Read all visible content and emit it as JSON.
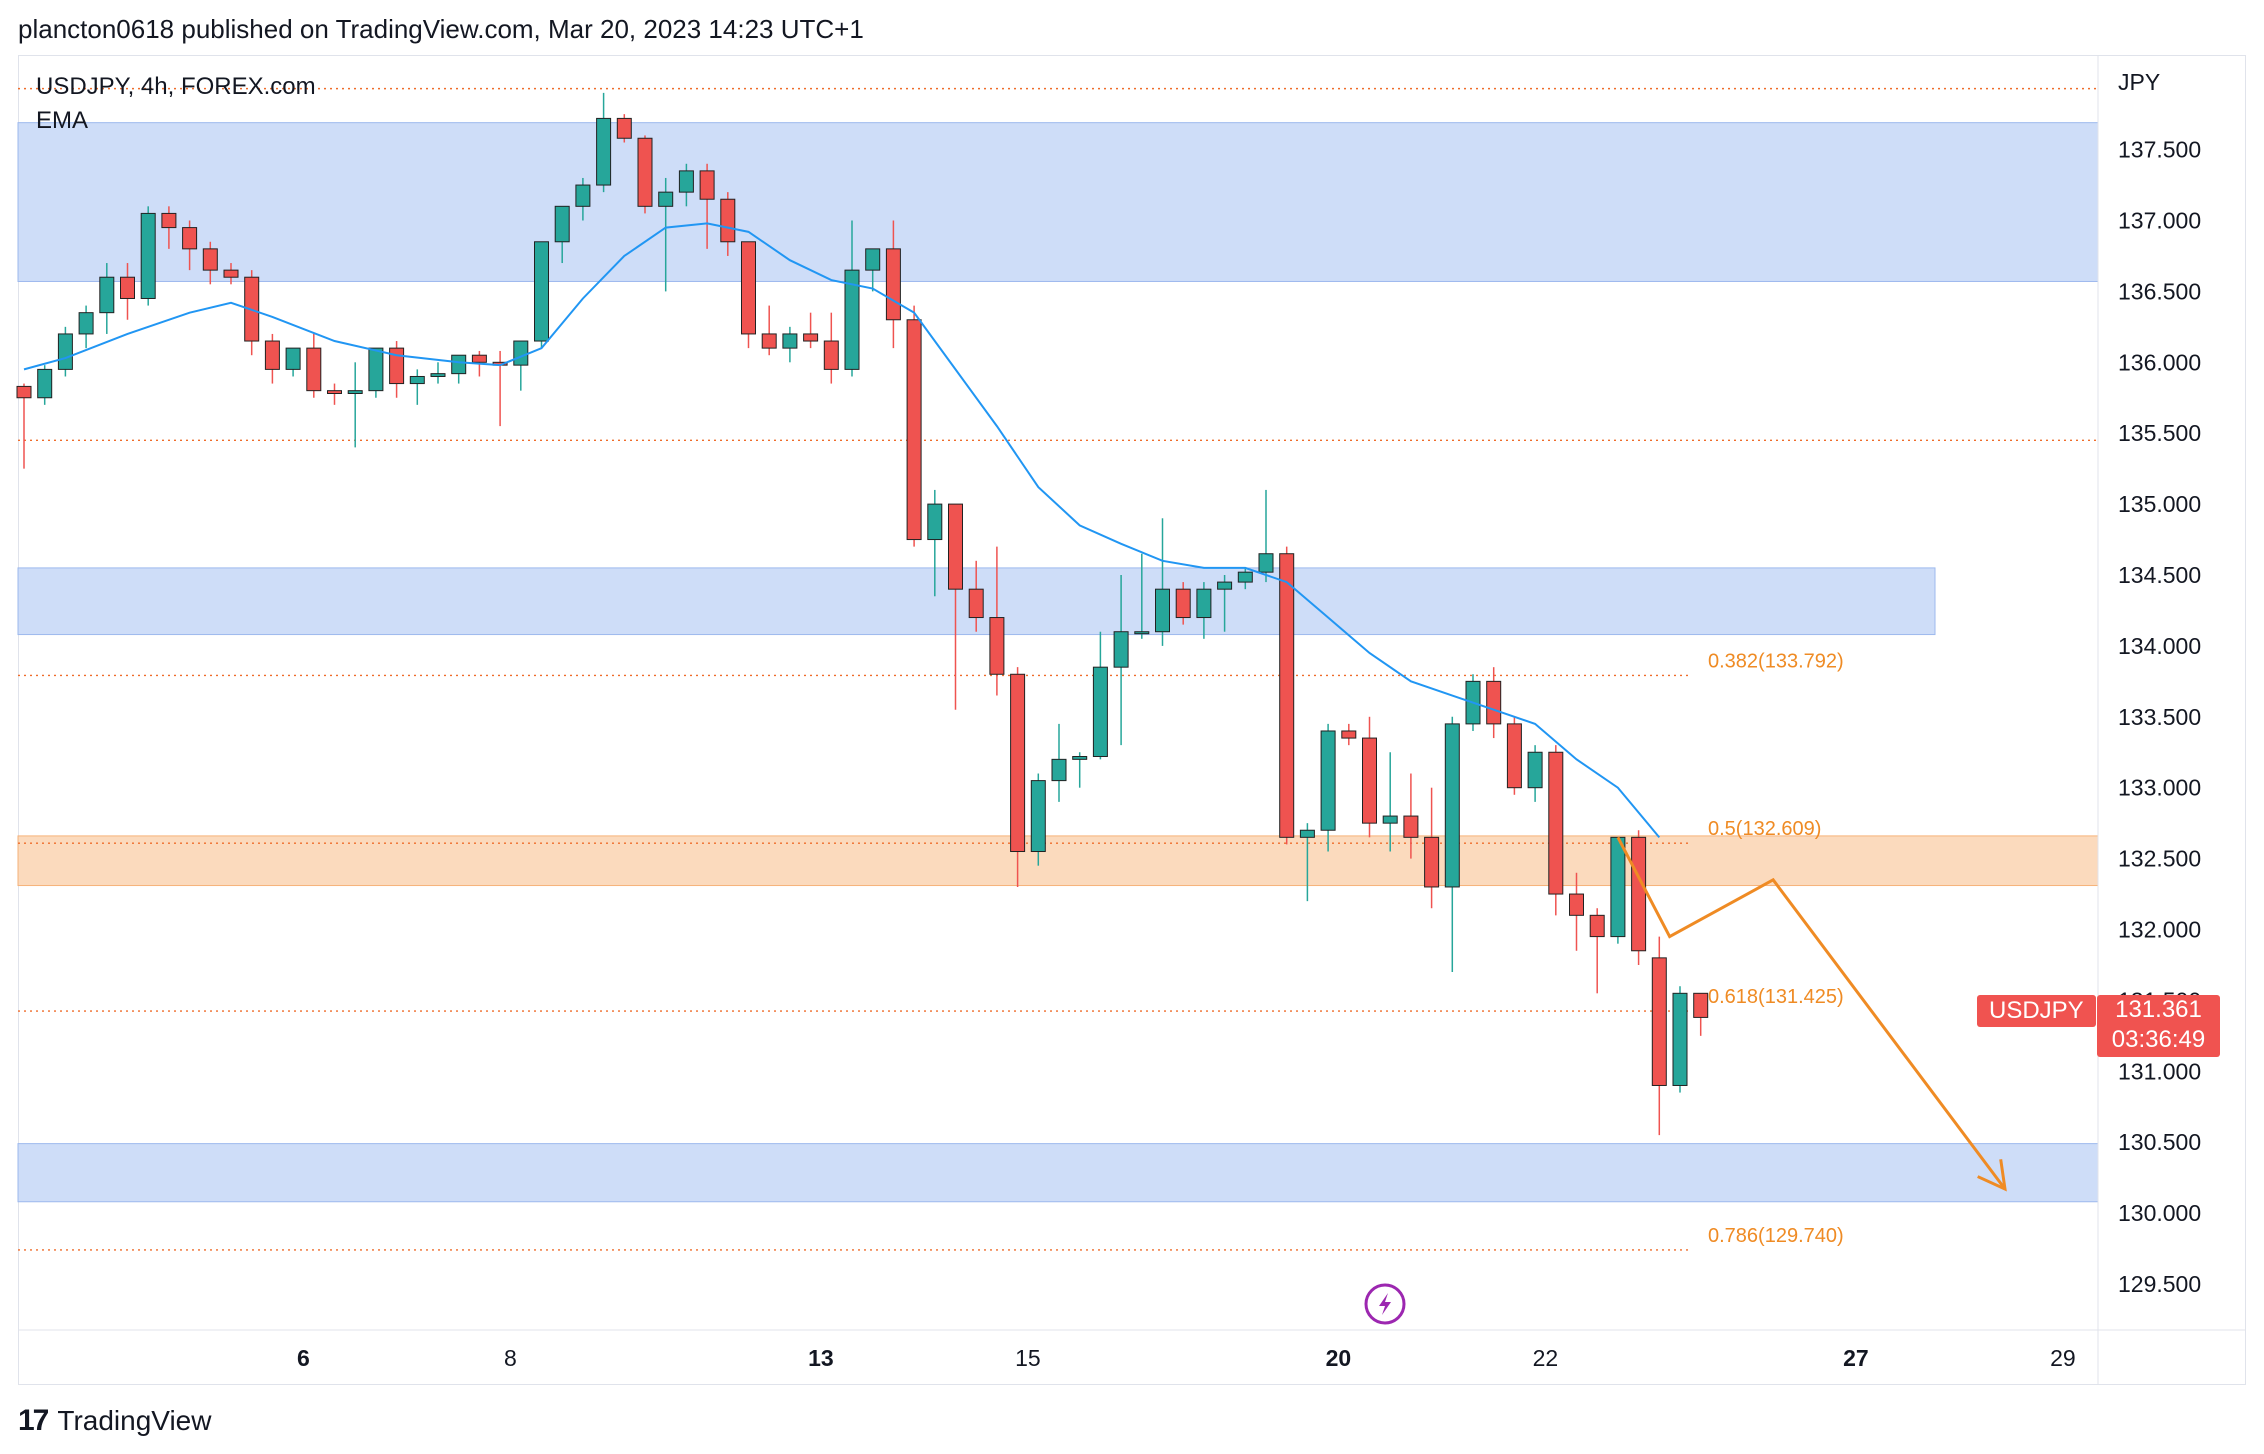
{
  "header": {
    "published_by": "plancton0618 published on TradingView.com, Mar 20, 2023 14:23 UTC+1"
  },
  "legend": {
    "symbol_line": "USDJPY, 4h, FOREX.com",
    "indicator": "EMA"
  },
  "brand": {
    "name": "TradingView"
  },
  "price_label": {
    "symbol": "USDJPY",
    "price": "131.361",
    "countdown": "03:36:49"
  },
  "colors": {
    "up": "#26a69a",
    "down": "#ef5350",
    "ema": "#2196f3",
    "zone_blue": "#c9d9f7",
    "zone_orange": "#fbd6b6",
    "fib": "#ef8b24",
    "price_tag": "#f05350"
  },
  "chart_data": {
    "type": "candlestick",
    "symbol": "USDJPY",
    "timeframe": "4h",
    "currency_label": "JPY",
    "y_range": [
      129.1,
      138.0
    ],
    "y_ticks": [
      "137.500",
      "137.000",
      "136.500",
      "136.000",
      "135.500",
      "135.000",
      "134.500",
      "134.000",
      "133.500",
      "133.000",
      "132.500",
      "132.000",
      "131.500",
      "131.000",
      "130.500",
      "130.000",
      "129.500"
    ],
    "x_ticks": [
      {
        "label": "6",
        "index": 13.5,
        "bold": true
      },
      {
        "label": "8",
        "index": 23.5,
        "bold": false
      },
      {
        "label": "13",
        "index": 38.5,
        "bold": true
      },
      {
        "label": "15",
        "index": 48.5,
        "bold": false
      },
      {
        "label": "20",
        "index": 63.5,
        "bold": true
      },
      {
        "label": "22",
        "index": 73.5,
        "bold": false
      },
      {
        "label": "27",
        "index": 88.5,
        "bold": true
      },
      {
        "label": "29",
        "index": 98.5,
        "bold": false
      }
    ],
    "candles": [
      [
        135.83,
        135.85,
        135.25,
        135.75
      ],
      [
        135.75,
        135.98,
        135.7,
        135.95
      ],
      [
        135.95,
        136.25,
        135.9,
        136.2
      ],
      [
        136.2,
        136.4,
        136.1,
        136.35
      ],
      [
        136.35,
        136.7,
        136.2,
        136.6
      ],
      [
        136.6,
        136.7,
        136.3,
        136.45
      ],
      [
        136.45,
        137.1,
        136.4,
        137.05
      ],
      [
        137.05,
        137.1,
        136.8,
        136.95
      ],
      [
        136.95,
        137.0,
        136.65,
        136.8
      ],
      [
        136.8,
        136.85,
        136.55,
        136.65
      ],
      [
        136.65,
        136.7,
        136.55,
        136.6
      ],
      [
        136.6,
        136.65,
        136.05,
        136.15
      ],
      [
        136.15,
        136.2,
        135.85,
        135.95
      ],
      [
        135.95,
        136.1,
        135.9,
        136.1
      ],
      [
        136.1,
        136.2,
        135.75,
        135.8
      ],
      [
        135.8,
        135.85,
        135.7,
        135.78
      ],
      [
        135.78,
        136.0,
        135.4,
        135.8
      ],
      [
        135.8,
        136.1,
        135.75,
        136.1
      ],
      [
        136.1,
        136.15,
        135.75,
        135.85
      ],
      [
        135.85,
        135.95,
        135.7,
        135.9
      ],
      [
        135.9,
        136.0,
        135.85,
        135.92
      ],
      [
        135.92,
        136.05,
        135.85,
        136.05
      ],
      [
        136.05,
        136.08,
        135.9,
        136.0
      ],
      [
        136.0,
        136.08,
        135.55,
        135.98
      ],
      [
        135.98,
        136.15,
        135.8,
        136.15
      ],
      [
        136.15,
        136.85,
        136.1,
        136.85
      ],
      [
        136.85,
        137.1,
        136.7,
        137.1
      ],
      [
        137.1,
        137.3,
        137.0,
        137.25
      ],
      [
        137.25,
        137.9,
        137.2,
        137.72
      ],
      [
        137.72,
        137.75,
        137.55,
        137.58
      ],
      [
        137.58,
        137.6,
        137.05,
        137.1
      ],
      [
        137.1,
        137.3,
        136.5,
        137.2
      ],
      [
        137.2,
        137.4,
        137.1,
        137.35
      ],
      [
        137.35,
        137.4,
        136.8,
        137.15
      ],
      [
        137.15,
        137.2,
        136.75,
        136.85
      ],
      [
        136.85,
        136.85,
        136.1,
        136.2
      ],
      [
        136.2,
        136.4,
        136.05,
        136.1
      ],
      [
        136.1,
        136.25,
        136.0,
        136.2
      ],
      [
        136.2,
        136.35,
        136.1,
        136.15
      ],
      [
        136.15,
        136.35,
        135.85,
        135.95
      ],
      [
        135.95,
        137.0,
        135.9,
        136.65
      ],
      [
        136.65,
        136.8,
        136.5,
        136.8
      ],
      [
        136.8,
        137.0,
        136.1,
        136.3
      ],
      [
        136.3,
        136.4,
        134.7,
        134.75
      ],
      [
        134.75,
        135.1,
        134.35,
        135.0
      ],
      [
        135.0,
        135.0,
        133.55,
        134.4
      ],
      [
        134.4,
        134.6,
        134.1,
        134.2
      ],
      [
        134.2,
        134.7,
        133.65,
        133.8
      ],
      [
        133.8,
        133.85,
        132.3,
        132.55
      ],
      [
        132.55,
        133.1,
        132.45,
        133.05
      ],
      [
        133.05,
        133.45,
        132.9,
        133.2
      ],
      [
        133.2,
        133.25,
        133.0,
        133.22
      ],
      [
        133.22,
        134.1,
        133.2,
        133.85
      ],
      [
        133.85,
        134.5,
        133.3,
        134.1
      ],
      [
        134.1,
        134.65,
        134.05,
        134.1
      ],
      [
        134.1,
        134.9,
        134.0,
        134.4
      ],
      [
        134.4,
        134.45,
        134.15,
        134.2
      ],
      [
        134.2,
        134.45,
        134.05,
        134.4
      ],
      [
        134.4,
        134.5,
        134.1,
        134.45
      ],
      [
        134.45,
        134.55,
        134.4,
        134.52
      ],
      [
        134.52,
        135.1,
        134.45,
        134.65
      ],
      [
        134.65,
        134.7,
        132.6,
        132.65
      ],
      [
        132.65,
        132.75,
        132.2,
        132.7
      ],
      [
        132.7,
        133.45,
        132.55,
        133.4
      ],
      [
        133.4,
        133.45,
        133.3,
        133.35
      ],
      [
        133.35,
        133.5,
        132.65,
        132.75
      ],
      [
        132.75,
        133.25,
        132.55,
        132.8
      ],
      [
        132.8,
        133.1,
        132.5,
        132.65
      ],
      [
        132.65,
        133.0,
        132.15,
        132.3
      ],
      [
        132.3,
        133.5,
        131.7,
        133.45
      ],
      [
        133.45,
        133.8,
        133.4,
        133.75
      ],
      [
        133.75,
        133.85,
        133.35,
        133.45
      ],
      [
        133.45,
        133.5,
        132.95,
        133.0
      ],
      [
        133.0,
        133.3,
        132.9,
        133.25
      ],
      [
        133.25,
        133.3,
        132.1,
        132.25
      ],
      [
        132.25,
        132.4,
        131.85,
        132.1
      ],
      [
        132.1,
        132.15,
        131.55,
        131.95
      ],
      [
        131.95,
        132.65,
        131.9,
        132.65
      ],
      [
        132.65,
        132.7,
        131.75,
        131.85
      ],
      [
        131.8,
        131.95,
        130.55,
        130.9
      ],
      [
        130.9,
        131.6,
        130.85,
        131.55
      ],
      [
        131.55,
        131.55,
        131.25,
        131.38
      ]
    ],
    "ema": [
      [
        0,
        135.95
      ],
      [
        2,
        136.03
      ],
      [
        5,
        136.2
      ],
      [
        8,
        136.35
      ],
      [
        10,
        136.42
      ],
      [
        12,
        136.32
      ],
      [
        15,
        136.15
      ],
      [
        18,
        136.05
      ],
      [
        21,
        136.0
      ],
      [
        23,
        135.98
      ],
      [
        25,
        136.1
      ],
      [
        27,
        136.45
      ],
      [
        29,
        136.75
      ],
      [
        31,
        136.95
      ],
      [
        33,
        136.98
      ],
      [
        35,
        136.92
      ],
      [
        37,
        136.72
      ],
      [
        39,
        136.58
      ],
      [
        41,
        136.52
      ],
      [
        43,
        136.35
      ],
      [
        45,
        135.95
      ],
      [
        47,
        135.55
      ],
      [
        49,
        135.12
      ],
      [
        51,
        134.85
      ],
      [
        53,
        134.72
      ],
      [
        55,
        134.6
      ],
      [
        57,
        134.55
      ],
      [
        59,
        134.55
      ],
      [
        61,
        134.45
      ],
      [
        63,
        134.2
      ],
      [
        65,
        133.95
      ],
      [
        67,
        133.75
      ],
      [
        69,
        133.65
      ],
      [
        71,
        133.55
      ],
      [
        73,
        133.45
      ],
      [
        75,
        133.2
      ],
      [
        77,
        133.0
      ],
      [
        79,
        132.65
      ]
    ],
    "zones": [
      {
        "type": "supply",
        "top": 137.69,
        "bottom": 136.57,
        "color": "blue"
      },
      {
        "type": "supply",
        "top": 134.55,
        "bottom": 134.08,
        "color": "blue"
      },
      {
        "type": "fib-zone",
        "top": 132.66,
        "bottom": 132.31,
        "color": "orange"
      },
      {
        "type": "demand",
        "top": 130.49,
        "bottom": 130.08,
        "color": "blue"
      }
    ],
    "levels": [
      {
        "price": 137.93,
        "label": ""
      },
      {
        "price": 135.45,
        "label": ""
      },
      {
        "price": 133.792,
        "label": "0.382(133.792)"
      },
      {
        "price": 132.609,
        "label": "0.5(132.609)"
      },
      {
        "price": 131.425,
        "label": "0.618(131.425)"
      },
      {
        "price": 129.74,
        "label": "0.786(129.740)"
      }
    ],
    "projection": [
      [
        77,
        132.65
      ],
      [
        79.5,
        131.95
      ],
      [
        84.5,
        132.35
      ],
      [
        95.7,
        130.17
      ]
    ],
    "last_price": 131.361
  }
}
